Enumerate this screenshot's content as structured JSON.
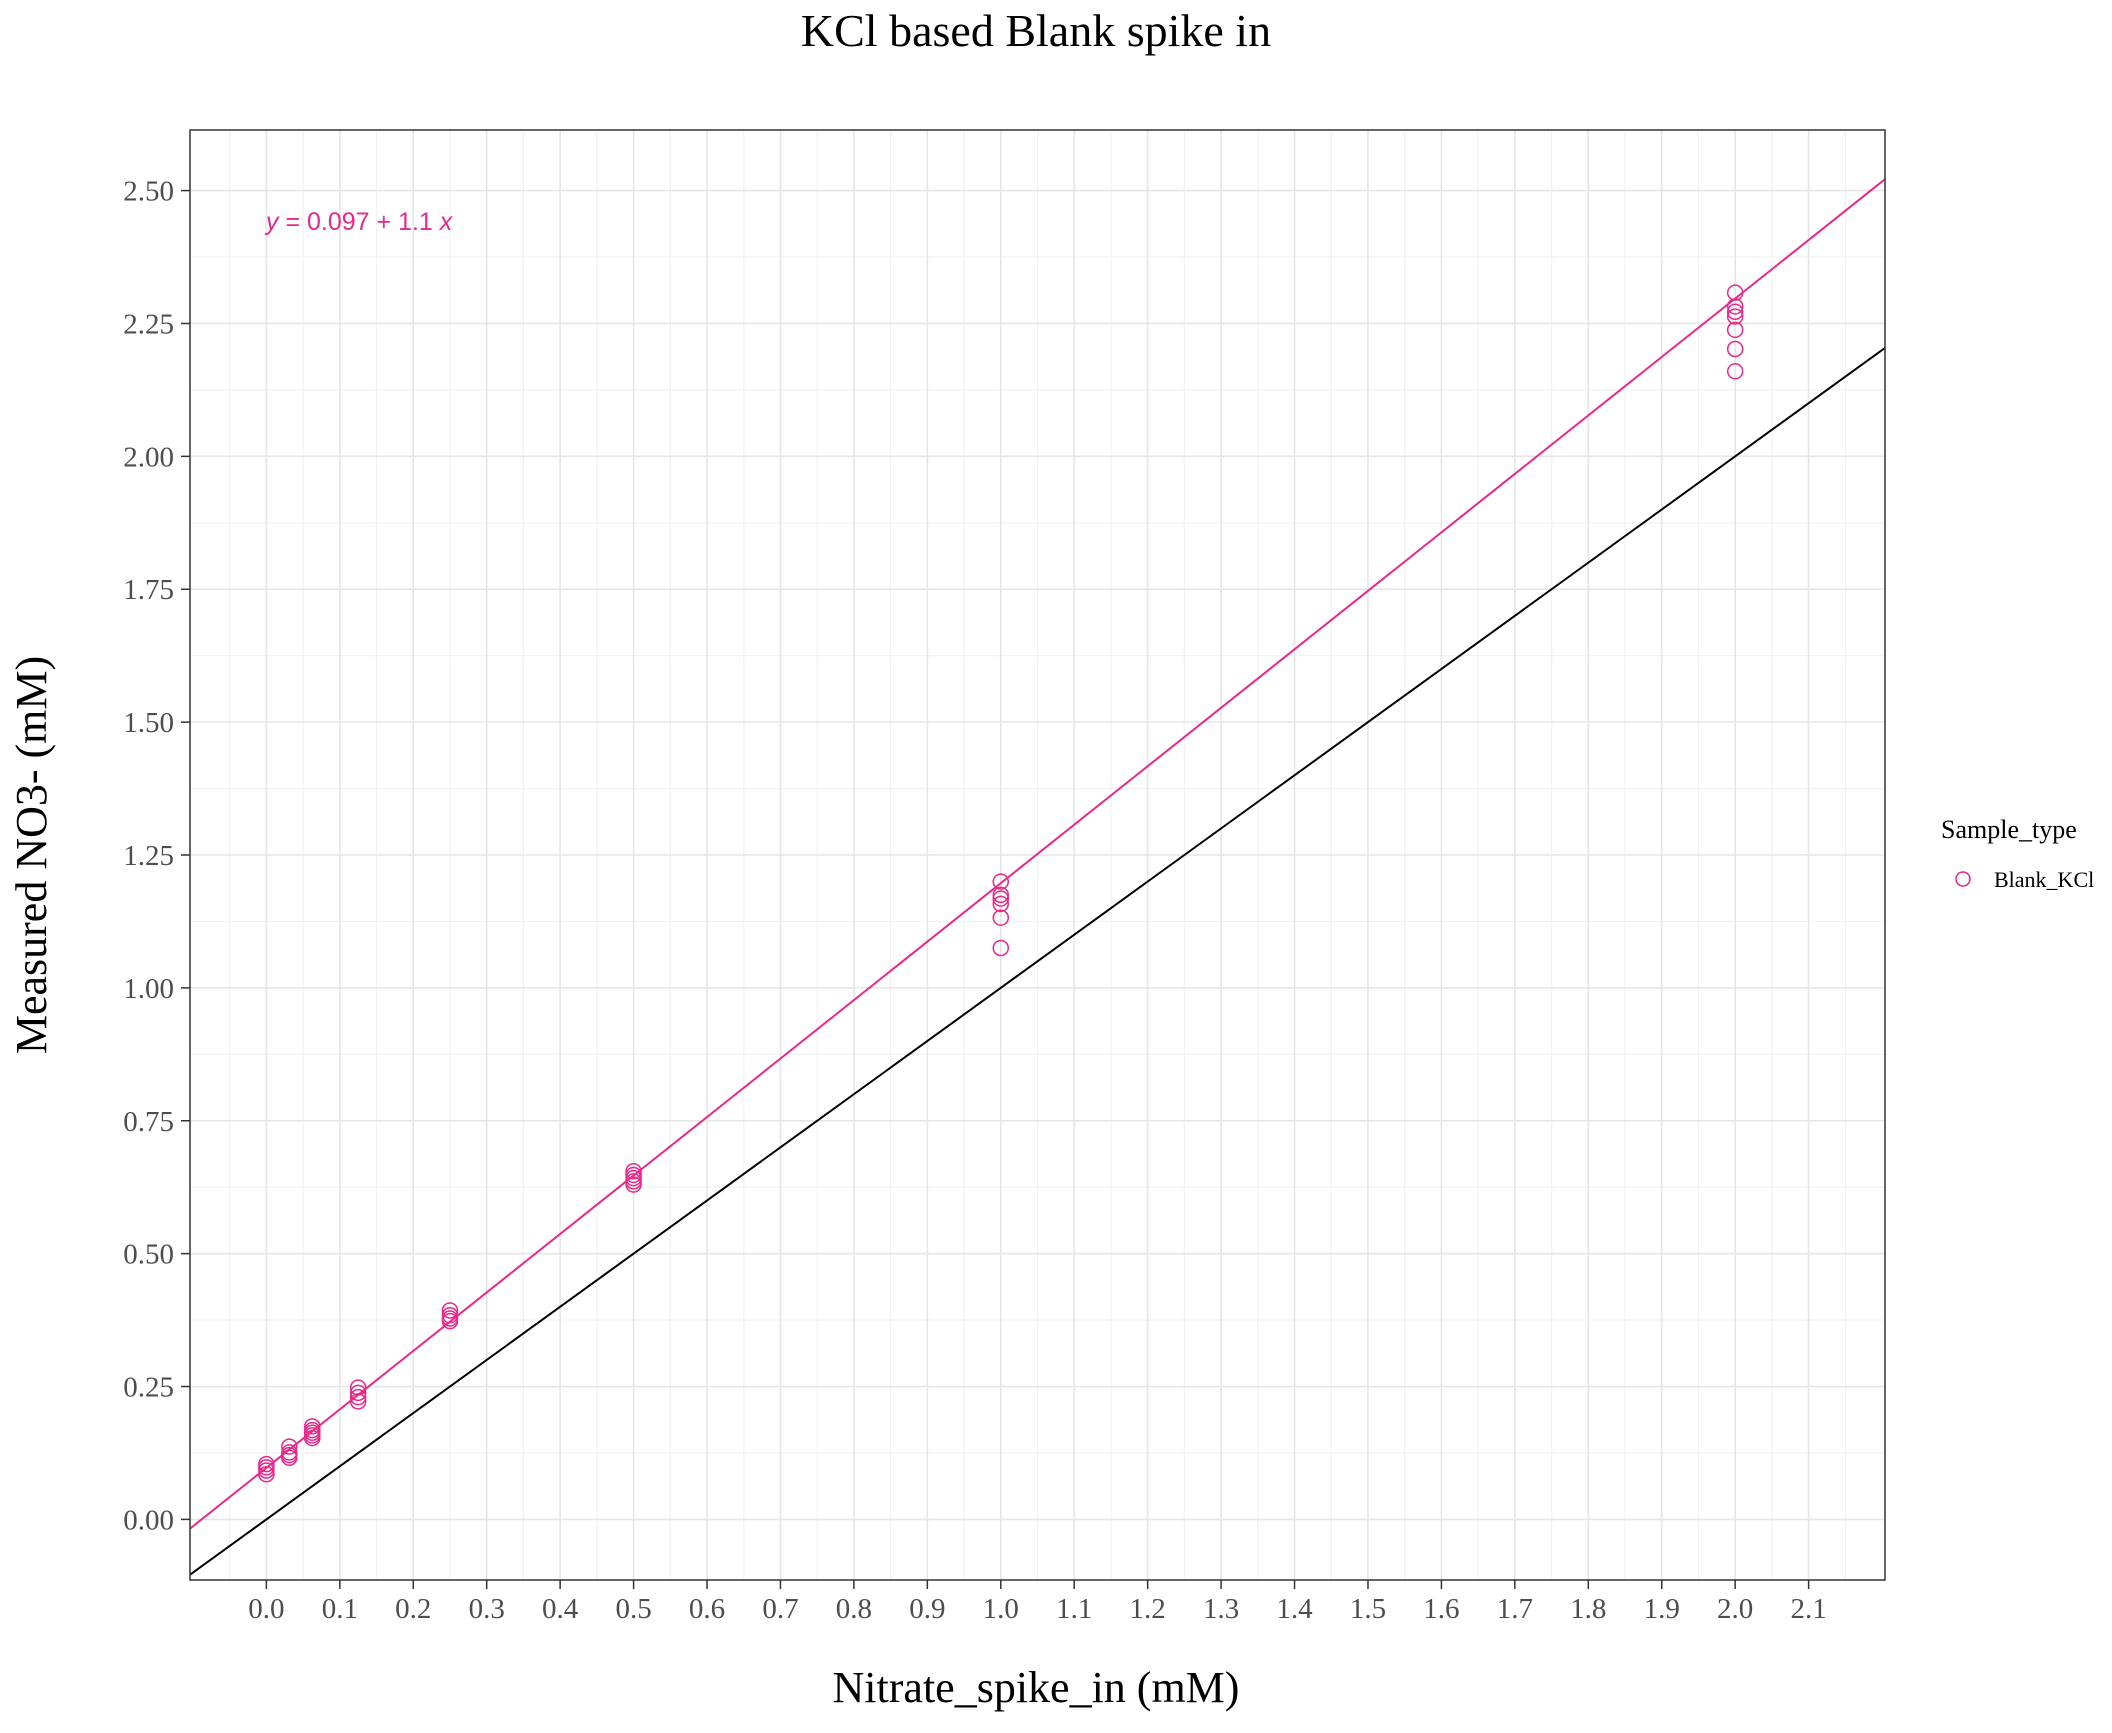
{
  "chart_data": {
    "type": "scatter",
    "title": "KCl based Blank spike in",
    "xlabel": "Nitrate_spike_in (mM)",
    "ylabel": "Measured NO3- (mM)",
    "xlim": [
      -0.104,
      2.204
    ],
    "ylim": [
      -0.114,
      2.614
    ],
    "x_ticks": [
      "0.0",
      "0.1",
      "0.2",
      "0.3",
      "0.4",
      "0.5",
      "0.6",
      "0.7",
      "0.8",
      "0.9",
      "1.0",
      "1.1",
      "1.2",
      "1.3",
      "1.4",
      "1.5",
      "1.6",
      "1.7",
      "1.8",
      "1.9",
      "2.0",
      "2.1"
    ],
    "y_ticks": [
      "0.00",
      "0.25",
      "0.50",
      "0.75",
      "1.00",
      "1.25",
      "1.50",
      "1.75",
      "2.00",
      "2.25",
      "2.50"
    ],
    "grid": true,
    "legend": {
      "title": "Sample_type",
      "placement": "right",
      "entries": [
        {
          "name": "Blank_KCl",
          "color": "#e7298a"
        }
      ]
    },
    "series": [
      {
        "name": "Blank_KCl",
        "color": "#e7298a",
        "marker": "open-circle",
        "points": [
          [
            0.0,
            0.085
          ],
          [
            0.0,
            0.092
          ],
          [
            0.0,
            0.098
          ],
          [
            0.0,
            0.104
          ],
          [
            0.03125,
            0.116
          ],
          [
            0.03125,
            0.121
          ],
          [
            0.03125,
            0.126
          ],
          [
            0.03125,
            0.137
          ],
          [
            0.0625,
            0.153
          ],
          [
            0.0625,
            0.158
          ],
          [
            0.0625,
            0.163
          ],
          [
            0.0625,
            0.168
          ],
          [
            0.0625,
            0.175
          ],
          [
            0.125,
            0.222
          ],
          [
            0.125,
            0.23
          ],
          [
            0.125,
            0.238
          ],
          [
            0.125,
            0.248
          ],
          [
            0.25,
            0.373
          ],
          [
            0.25,
            0.378
          ],
          [
            0.25,
            0.384
          ],
          [
            0.25,
            0.393
          ],
          [
            0.5,
            0.63
          ],
          [
            0.5,
            0.636
          ],
          [
            0.5,
            0.642
          ],
          [
            0.5,
            0.648
          ],
          [
            0.5,
            0.655
          ],
          [
            1.0,
            1.075
          ],
          [
            1.0,
            1.132
          ],
          [
            1.0,
            1.158
          ],
          [
            1.0,
            1.168
          ],
          [
            1.0,
            1.175
          ],
          [
            1.0,
            1.2
          ],
          [
            2.0,
            2.16
          ],
          [
            2.0,
            2.202
          ],
          [
            2.0,
            2.238
          ],
          [
            2.0,
            2.263
          ],
          [
            2.0,
            2.272
          ],
          [
            2.0,
            2.282
          ],
          [
            2.0,
            2.308
          ]
        ]
      }
    ],
    "fit_line": {
      "intercept": 0.097,
      "slope": 1.1,
      "color": "#e7298a",
      "label": "y = 0.097 + 1.1 x"
    },
    "reference_line": {
      "intercept": 0,
      "slope": 1,
      "color": "#000000"
    }
  }
}
